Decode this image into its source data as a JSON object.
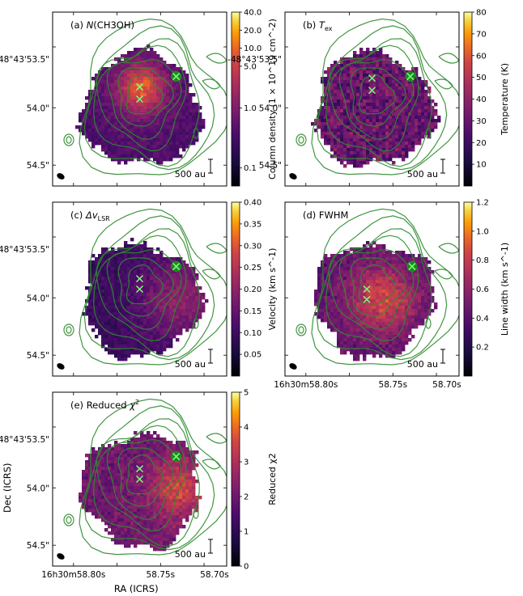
{
  "chart_data": [
    {
      "type": "heatmap",
      "panel": "a",
      "title_prefix": "(a) ",
      "title_italic": "N",
      "title_rest": "(CH3OH)",
      "colorbar_label": "Column density (1 × 10^19 cm^-2)",
      "colorbar_ticks": [
        "40.0",
        "20.0",
        "10.0",
        "5.0",
        "1.0",
        "0.1"
      ],
      "colorbar_scale": "log",
      "colorbar_range": [
        0.05,
        40.0
      ],
      "colormap": "inferno",
      "scale_bar": "500 au",
      "show_beam": true,
      "ylabel": "",
      "xlabel": "",
      "x_ticks": [],
      "y_ticks": [
        "-48°43'53.5\"",
        "54.0\"",
        "54.5\""
      ]
    },
    {
      "type": "heatmap",
      "panel": "b",
      "title_prefix": "(b) ",
      "title_italic": "T",
      "title_sub": "ex",
      "colorbar_label": "Temperature (K)",
      "colorbar_ticks": [
        "80",
        "70",
        "60",
        "50",
        "40",
        "30",
        "20",
        "10"
      ],
      "colorbar_range": [
        0,
        80
      ],
      "colormap": "inferno",
      "scale_bar": "500 au",
      "show_beam": true,
      "y_ticks": [
        "-48°43'53.5\"",
        "54.0\"",
        "54.5\""
      ]
    },
    {
      "type": "heatmap",
      "panel": "c",
      "title_prefix": "(c) ",
      "title_italic": "Δv",
      "title_sub": "LSR",
      "colorbar_label": "Velocity (km s^-1)",
      "colorbar_ticks": [
        "0.40",
        "0.35",
        "0.30",
        "0.25",
        "0.20",
        "0.15",
        "0.10",
        "0.05"
      ],
      "colorbar_range": [
        0.0,
        0.4
      ],
      "colormap": "inferno",
      "scale_bar": "500 au",
      "show_beam": true,
      "y_ticks": [
        "-48°43'53.5\"",
        "54.0\"",
        "54.5\""
      ]
    },
    {
      "type": "heatmap",
      "panel": "d",
      "title_prefix": "(d) FWHM",
      "colorbar_label": "Line width (km s^-1)",
      "colorbar_ticks": [
        "1.2",
        "1.0",
        "0.8",
        "0.6",
        "0.4",
        "0.2"
      ],
      "colorbar_range": [
        0.0,
        1.2
      ],
      "colormap": "inferno",
      "scale_bar": "500 au",
      "show_beam": true,
      "x_ticks": [
        "16h30m58.80s",
        "58.75s",
        "58.70s"
      ]
    },
    {
      "type": "heatmap",
      "panel": "e",
      "title_prefix": "(e) Reduced ",
      "title_italic": "χ",
      "title_sup": "2",
      "colorbar_label": "Reduced χ2",
      "colorbar_ticks": [
        "5",
        "4",
        "3",
        "2",
        "1",
        "0"
      ],
      "colorbar_range": [
        0,
        5
      ],
      "colormap": "inferno",
      "scale_bar": "500 au",
      "show_beam": true,
      "y_ticks": [
        "-48°43'53.5\"",
        "54.0\"",
        "54.5\""
      ],
      "x_ticks": [
        "16h30m58.80s",
        "58.75s",
        "58.70s"
      ],
      "ylabel": "Dec (ICRS)",
      "xlabel": "RA (ICRS)"
    }
  ],
  "colors": {
    "contour": "#2e8b2e",
    "marker": "#7cff7c",
    "beam": "#000000",
    "source_fill": "#1a8a1a"
  },
  "markers_note": "two green crosses near peak; one green filled circle with cross"
}
